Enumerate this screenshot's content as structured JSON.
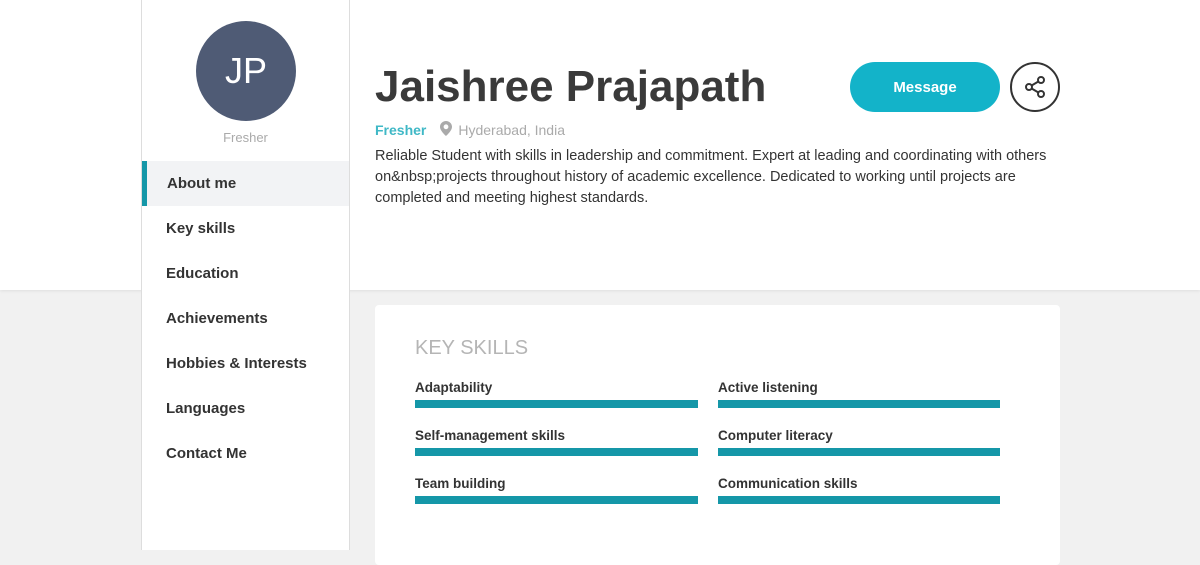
{
  "profile": {
    "initials": "JP",
    "sidebar_subtitle": "Fresher",
    "name": "Jaishree Prajapath",
    "role": "Fresher",
    "location": "Hyderabad, India",
    "description": "Reliable Student with skills in leadership and commitment. Expert at leading and coordinating with others on&nbsp;projects throughout history of academic excellence. Dedicated to working until projects are completed and meeting highest standards."
  },
  "actions": {
    "message_label": "Message",
    "share_icon": "share-icon"
  },
  "sidebar": {
    "items": [
      {
        "label": "About me",
        "active": true
      },
      {
        "label": "Key skills"
      },
      {
        "label": "Education"
      },
      {
        "label": "Achievements"
      },
      {
        "label": "Hobbies & Interests"
      },
      {
        "label": "Languages"
      },
      {
        "label": "Contact Me"
      }
    ]
  },
  "key_skills": {
    "title": "KEY SKILLS",
    "items": [
      {
        "label": "Adaptability",
        "level_percent": 100
      },
      {
        "label": "Active listening",
        "level_percent": 100
      },
      {
        "label": "Self-management skills",
        "level_percent": 100
      },
      {
        "label": "Computer literacy",
        "level_percent": 100
      },
      {
        "label": "Team building",
        "level_percent": 100
      },
      {
        "label": "Communication skills",
        "level_percent": 100
      }
    ]
  },
  "colors": {
    "accent": "#13b3c9",
    "bar": "#1597a8",
    "avatar": "#4f5b75"
  }
}
